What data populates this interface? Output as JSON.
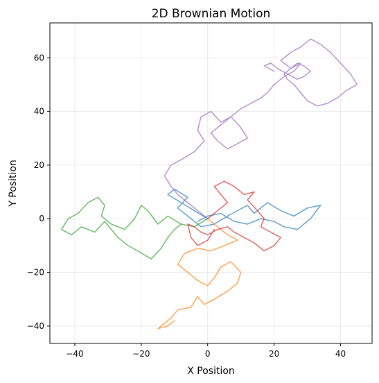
{
  "chart_data": {
    "type": "line",
    "title": "2D Brownian Motion",
    "xlabel": "X Position",
    "ylabel": "Y Position",
    "xlim": [
      -47.5,
      49.5
    ],
    "ylim": [
      -46.5,
      73
    ],
    "xticks": [
      -40,
      -20,
      0,
      20,
      40
    ],
    "yticks": [
      -40,
      -20,
      0,
      20,
      40,
      60
    ],
    "xtick_labels": [
      "−40",
      "−20",
      "0",
      "20",
      "40"
    ],
    "ytick_labels": [
      "−40",
      "−20",
      "0",
      "20",
      "40",
      "60"
    ],
    "grid": true,
    "legend": "none",
    "series": [
      {
        "color": "#1f77b4",
        "opacity": 0.7,
        "x": [
          0,
          -4,
          -8,
          -12,
          -10,
          -6,
          -9,
          -5,
          -2,
          2,
          6,
          9,
          12,
          14,
          18,
          22,
          26,
          30,
          34,
          31,
          27,
          23,
          20,
          16,
          12,
          8,
          4,
          0,
          -3
        ],
        "y": [
          0,
          3,
          6,
          9,
          11,
          8,
          4,
          0,
          -3,
          -2,
          1,
          3,
          5,
          2,
          6,
          3,
          1,
          4,
          5,
          0,
          -4,
          -3,
          -1,
          0,
          -2,
          -1,
          2,
          1,
          -1
        ]
      },
      {
        "color": "#ff7f0e",
        "opacity": 0.7,
        "x": [
          0,
          3,
          6,
          9,
          5,
          1,
          -3,
          -7,
          -9,
          -6,
          -3,
          0,
          2,
          4,
          7,
          10,
          9,
          6,
          2,
          -1,
          -3,
          -5,
          -9,
          -11,
          -13,
          -15,
          -12,
          -10
        ],
        "y": [
          0,
          -3,
          -6,
          -8,
          -10,
          -12,
          -11,
          -13,
          -17,
          -20,
          -23,
          -25,
          -22,
          -18,
          -16,
          -20,
          -24,
          -27,
          -30,
          -32,
          -29,
          -33,
          -34,
          -37,
          -39,
          -41,
          -40,
          -38
        ]
      },
      {
        "color": "#2ca02c",
        "opacity": 0.7,
        "x": [
          0,
          -4,
          -8,
          -12,
          -15,
          -18,
          -20,
          -22,
          -25,
          -29,
          -32,
          -31,
          -33,
          -36,
          -39,
          -42,
          -44,
          -41,
          -38,
          -34,
          -31,
          -27,
          -24,
          -21,
          -17,
          -14,
          -12,
          -10,
          -8
        ],
        "y": [
          0,
          -3,
          -2,
          1,
          -2,
          3,
          5,
          0,
          -4,
          -2,
          1,
          5,
          8,
          6,
          2,
          0,
          -4,
          -6,
          -3,
          -5,
          -1,
          -7,
          -10,
          -12,
          -15,
          -11,
          -7,
          -4,
          -2
        ]
      },
      {
        "color": "#d62728",
        "opacity": 0.7,
        "x": [
          0,
          3,
          6,
          4,
          2,
          5,
          8,
          11,
          14,
          12,
          15,
          17,
          16,
          19,
          22,
          20,
          17,
          14,
          11,
          8,
          6,
          3,
          0,
          -2,
          -4,
          -6,
          -5,
          -3,
          0,
          2
        ],
        "y": [
          0,
          3,
          6,
          9,
          12,
          14,
          12,
          9,
          10,
          7,
          3,
          0,
          -3,
          -5,
          -7,
          -10,
          -12,
          -9,
          -7,
          -5,
          -3,
          -4,
          -6,
          -5,
          -3,
          -2,
          -7,
          -10,
          -8,
          -4
        ]
      },
      {
        "color": "#9467bd",
        "opacity": 0.7,
        "x": [
          0,
          -3,
          -6,
          -9,
          -11,
          -13,
          -11,
          -8,
          -4,
          -1,
          -3,
          -2,
          1,
          4,
          7,
          10,
          12,
          9,
          6,
          3,
          1,
          4,
          7,
          10,
          13,
          16,
          18,
          20,
          23,
          26,
          28,
          25,
          22,
          25,
          28,
          31,
          34,
          37,
          40,
          43,
          45,
          42,
          39,
          36,
          33,
          30,
          28,
          26,
          24,
          23,
          25,
          27,
          29,
          31,
          29,
          27,
          24,
          21,
          19,
          17,
          20
        ],
        "y": [
          0,
          3,
          6,
          9,
          12,
          16,
          20,
          22,
          25,
          29,
          33,
          38,
          40,
          36,
          38,
          34,
          30,
          28,
          26,
          29,
          32,
          35,
          38,
          41,
          43,
          45,
          47,
          50,
          53,
          55,
          58,
          56,
          59,
          62,
          64,
          67,
          65,
          62,
          58,
          54,
          50,
          48,
          45,
          43,
          42,
          44,
          47,
          50,
          52,
          54,
          56,
          58,
          57,
          55,
          53,
          52,
          54,
          56,
          58,
          57,
          55
        ]
      }
    ]
  }
}
